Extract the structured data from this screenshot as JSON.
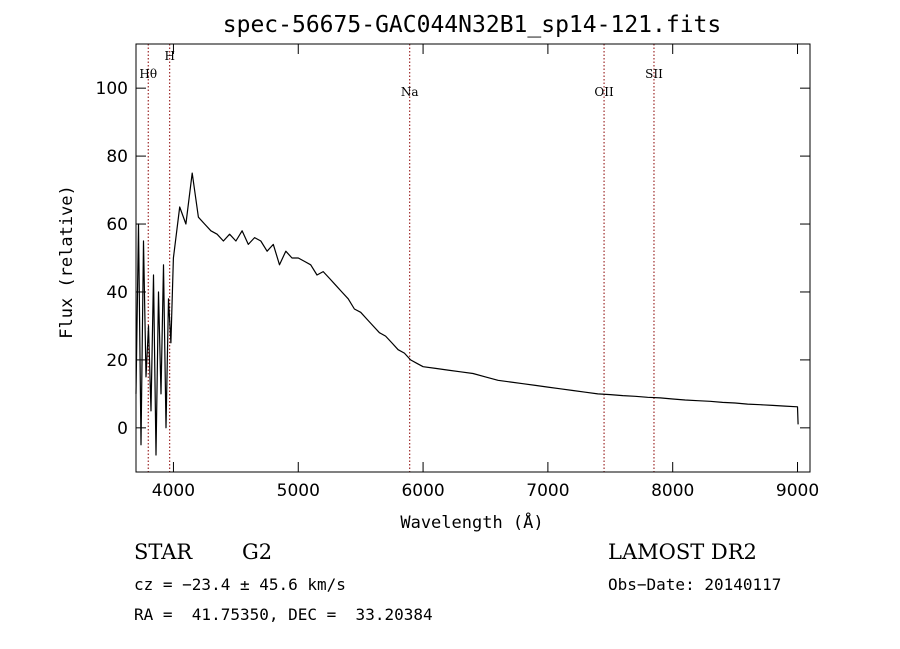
{
  "chart_data": {
    "type": "line",
    "title": "spec-56675-GAC044N32B1_sp14-121.fits",
    "xlabel": "Wavelength (Å)",
    "ylabel": "Flux (relative)",
    "xlim": [
      3700,
      9100
    ],
    "ylim": [
      -13,
      113
    ],
    "x_ticks": [
      4000,
      5000,
      6000,
      7000,
      8000,
      9000
    ],
    "y_ticks": [
      0,
      20,
      40,
      60,
      80,
      100
    ],
    "grid": false,
    "legend": "none",
    "line_color": "#000000",
    "marker_color": "#8b0000",
    "series": [
      {
        "x": [
          3700,
          3720,
          3740,
          3760,
          3780,
          3800,
          3820,
          3840,
          3860,
          3880,
          3900,
          3920,
          3940,
          3960,
          3980,
          4000,
          4050,
          4100,
          4150,
          4200,
          4250,
          4300,
          4350,
          4400,
          4450,
          4500,
          4550,
          4600,
          4650,
          4700,
          4750,
          4800,
          4850,
          4900,
          4950,
          5000,
          5050,
          5100,
          5150,
          5200,
          5250,
          5300,
          5350,
          5400,
          5450,
          5500,
          5550,
          5600,
          5650,
          5700,
          5750,
          5800,
          5850,
          5900,
          5950,
          6000,
          6100,
          6200,
          6300,
          6400,
          6500,
          6600,
          6700,
          6800,
          6900,
          7000,
          7100,
          7200,
          7300,
          7400,
          7500,
          7600,
          7700,
          7800,
          7900,
          8000,
          8100,
          8200,
          8300,
          8400,
          8500,
          8600,
          8700,
          8800,
          8900,
          9000,
          9005
        ],
        "y": [
          10,
          60,
          -5,
          55,
          15,
          30,
          5,
          45,
          -8,
          40,
          10,
          48,
          0,
          38,
          25,
          50,
          65,
          60,
          75,
          62,
          60,
          58,
          57,
          55,
          57,
          55,
          58,
          54,
          56,
          55,
          52,
          54,
          48,
          52,
          50,
          50,
          49,
          48,
          45,
          46,
          44,
          42,
          40,
          38,
          35,
          34,
          32,
          30,
          28,
          27,
          25,
          23,
          22,
          20,
          19,
          18,
          17.5,
          17,
          16.5,
          16,
          15,
          14,
          13.5,
          13,
          12.5,
          12,
          11.5,
          11,
          10.5,
          10,
          9.8,
          9.5,
          9.3,
          9.0,
          8.8,
          8.5,
          8.2,
          8.0,
          7.8,
          7.5,
          7.3,
          7.0,
          6.8,
          6.6,
          6.4,
          6.2,
          1
        ]
      }
    ],
    "lines": [
      {
        "label": "Hθ",
        "x": 3798
      },
      {
        "label": "H",
        "x": 3970
      },
      {
        "label": "Na",
        "x": 5893
      },
      {
        "label": "OII",
        "x": 7450
      },
      {
        "label": "SII",
        "x": 7850
      }
    ]
  },
  "info": {
    "object_type": "STAR",
    "subclass": "G2",
    "survey": "LAMOST DR2",
    "redshift": "cz = −23.4 ± 45.6 km/s",
    "obs_date": "Obs−Date: 20140117",
    "coords": "RA =  41.75350, DEC =  33.20384"
  }
}
